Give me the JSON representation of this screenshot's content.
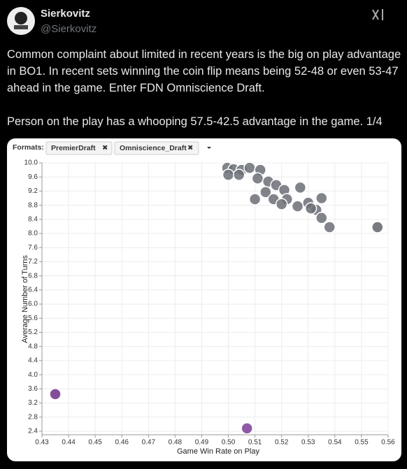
{
  "post": {
    "name": "Sierkovitz",
    "handle": "@Sierkovitz",
    "paragraphs": [
      "Common complaint about limited in recent years is the big on play advantage in BO1. In recent sets winning the coin flip means being 52-48 or even 53-47 ahead in the game. Enter FDN Omniscience Draft.",
      "Person on the play has a whooping 57.5-42.5 advantage in the game. 1/4"
    ]
  },
  "filter": {
    "label": "Formats:",
    "chips": [
      "PremierDraft",
      "Omniscience_Draft"
    ]
  },
  "chart_data": {
    "type": "scatter",
    "x_label": "Game Win Rate on Play",
    "y_label": "Average Number of Turns",
    "x": [
      0.435,
      0.507,
      0.556,
      0.4996,
      0.502,
      0.505,
      0.508,
      0.512,
      0.5,
      0.504,
      0.511,
      0.515,
      0.518,
      0.521,
      0.514,
      0.51,
      0.517,
      0.522,
      0.527,
      0.535,
      0.53,
      0.526,
      0.533,
      0.535,
      0.538,
      0.531,
      0.52
    ],
    "y": [
      3.45,
      2.48,
      8.18,
      9.86,
      9.82,
      9.8,
      9.86,
      9.8,
      9.66,
      9.66,
      9.56,
      9.47,
      9.37,
      9.23,
      9.17,
      8.97,
      8.97,
      8.97,
      9.3,
      9.0,
      8.87,
      8.77,
      8.67,
      8.44,
      8.18,
      8.71,
      8.83
    ],
    "colors": [
      "#6e2f8a",
      "#7b3d99",
      "#5f6368",
      "#6b6f75",
      "#6b6f75",
      "#6b6f75",
      "#6b6f75",
      "#6b6f75",
      "#6b6f75",
      "#6b6f75",
      "#6b6f75",
      "#6b6f75",
      "#6b6f75",
      "#6b6f75",
      "#6b6f75",
      "#6b6f75",
      "#6b6f75",
      "#6b6f75",
      "#6b6f75",
      "#6b6f75",
      "#6b6f75",
      "#6b6f75",
      "#6b6f75",
      "#6b6f75",
      "#6b6f75",
      "#6b6f75",
      "#6b6f75"
    ],
    "xlim": [
      0.43,
      0.56
    ],
    "xticks": [
      0.43,
      0.44,
      0.45,
      0.46,
      0.47,
      0.48,
      0.49,
      {
        "value": 0.5,
        "label": "0.50"
      },
      0.51,
      0.52,
      0.53,
      0.54,
      0.55,
      0.56
    ],
    "ylim": [
      2.3,
      10.0
    ],
    "yticks": [
      2.4,
      2.8,
      3.2,
      3.6,
      {
        "value": 4,
        "label": "4.0"
      },
      4.4,
      4.8,
      5.2,
      5.6,
      {
        "value": 6,
        "label": "6.0"
      },
      6.4,
      6.8,
      7.2,
      7.6,
      {
        "value": 8,
        "label": "8.0"
      },
      8.4,
      8.8,
      9.2,
      9.6,
      {
        "value": 10,
        "label": "10.0"
      }
    ],
    "grid": true
  }
}
